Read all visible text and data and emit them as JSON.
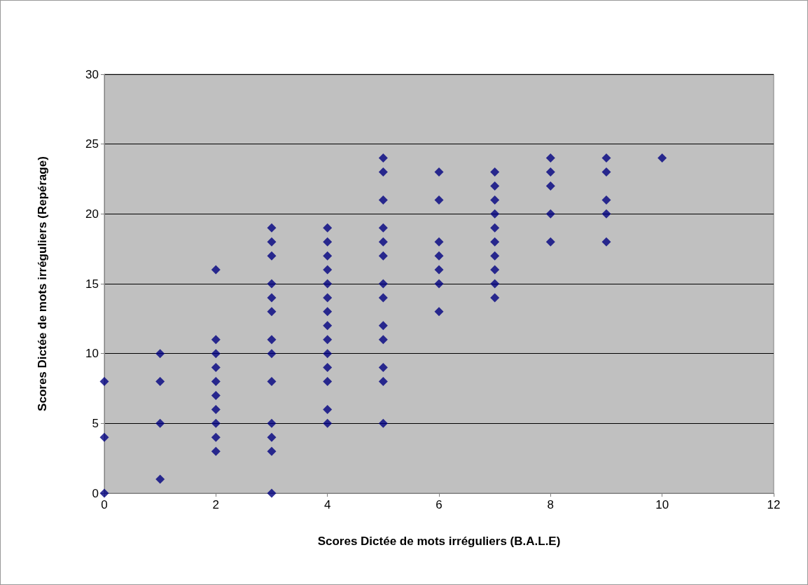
{
  "chart_data": {
    "type": "scatter",
    "xlabel": "Scores Dictée de mots irréguliers (B.A.L.E)",
    "ylabel": "Scores Dictée de mots irréguliers (Repérage)",
    "xlim": [
      0,
      12
    ],
    "xticks": [
      0,
      2,
      4,
      6,
      8,
      10,
      12
    ],
    "ylim": [
      0,
      30
    ],
    "yticks": [
      0,
      5,
      10,
      15,
      20,
      25,
      30
    ],
    "grid": "y",
    "marker": "diamond",
    "series": [
      {
        "color": "#000080",
        "x": [
          0,
          0,
          0,
          1,
          1,
          1,
          1,
          2,
          2,
          2,
          2,
          2,
          2,
          2,
          2,
          2,
          2,
          3,
          3,
          3,
          3,
          3,
          3,
          3,
          3,
          3,
          3,
          3,
          3,
          3,
          4,
          4,
          4,
          4,
          4,
          4,
          4,
          4,
          4,
          4,
          4,
          4,
          4,
          4,
          5,
          5,
          5,
          5,
          5,
          5,
          5,
          5,
          5,
          5,
          5,
          5,
          5,
          6,
          6,
          6,
          6,
          6,
          6,
          6,
          7,
          7,
          7,
          7,
          7,
          7,
          7,
          7,
          7,
          7,
          8,
          8,
          8,
          8,
          8,
          9,
          9,
          9,
          9,
          9,
          10
        ],
        "values": [
          8,
          4,
          0,
          10,
          8,
          5,
          1,
          16,
          11,
          10,
          9,
          8,
          7,
          6,
          5,
          4,
          3,
          19,
          18,
          17,
          15,
          14,
          13,
          11,
          10,
          8,
          5,
          4,
          3,
          0,
          19,
          18,
          17,
          16,
          15,
          14,
          13,
          12,
          11,
          10,
          9,
          8,
          6,
          5,
          24,
          23,
          21,
          19,
          18,
          17,
          15,
          14,
          12,
          11,
          9,
          8,
          5,
          23,
          21,
          18,
          17,
          16,
          15,
          13,
          23,
          22,
          21,
          20,
          19,
          18,
          17,
          16,
          15,
          14,
          24,
          23,
          22,
          20,
          18,
          24,
          23,
          21,
          20,
          18,
          24
        ]
      }
    ]
  }
}
